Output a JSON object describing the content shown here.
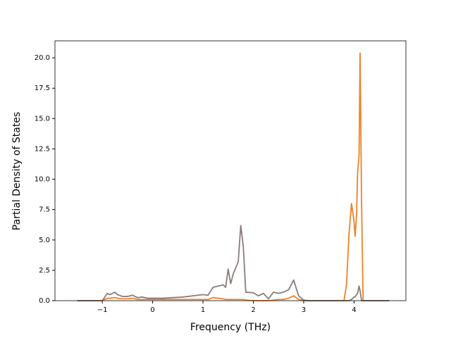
{
  "chart_data": {
    "type": "line",
    "xlabel": "Frequency (THz)",
    "ylabel": "Partial Density of States",
    "x": [
      -1.5,
      -1.0,
      -0.95,
      -0.9,
      -0.85,
      -0.75,
      -0.7,
      -0.6,
      -0.5,
      -0.4,
      -0.3,
      -0.2,
      -0.1,
      0,
      0.2,
      0.4,
      0.6,
      0.8,
      1.0,
      1.1,
      1.2,
      1.3,
      1.4,
      1.45,
      1.5,
      1.55,
      1.6,
      1.7,
      1.75,
      1.8,
      1.85,
      2.0,
      2.1,
      2.2,
      2.3,
      2.4,
      2.5,
      2.6,
      2.7,
      2.8,
      2.9,
      3.0,
      3.1,
      3.8,
      3.85,
      3.9,
      3.95,
      4.0,
      4.02,
      4.05,
      4.07,
      4.1,
      4.12,
      4.15,
      4.18,
      4.7
    ],
    "series": [
      {
        "color": "#ee8127",
        "values": [
          0,
          0,
          0.1,
          0.2,
          0.2,
          0.25,
          0.2,
          0.15,
          0.15,
          0.2,
          0.1,
          0.1,
          0.1,
          0.1,
          0.1,
          0.1,
          0.1,
          0.1,
          0.1,
          0.1,
          0.25,
          0.2,
          0.15,
          0.1,
          0.1,
          0.1,
          0.1,
          0.1,
          0.1,
          0.1,
          0.05,
          0,
          0,
          0,
          0,
          0.05,
          0.1,
          0.1,
          0.2,
          0.4,
          0.1,
          0,
          0,
          0,
          1.3,
          5.5,
          8.0,
          6.5,
          5.3,
          7.0,
          10.5,
          12,
          20.4,
          8,
          0,
          0
        ]
      },
      {
        "color": "#8a7b7b",
        "values": [
          0,
          0,
          0.3,
          0.6,
          0.5,
          0.7,
          0.5,
          0.35,
          0.35,
          0.45,
          0.25,
          0.3,
          0.2,
          0.2,
          0.2,
          0.25,
          0.3,
          0.4,
          0.5,
          0.45,
          1.1,
          1.2,
          1.3,
          1.1,
          2.6,
          1.4,
          2.2,
          3.2,
          6.2,
          4.5,
          0.7,
          0.65,
          0.4,
          0.6,
          0.15,
          0.7,
          0.6,
          0.7,
          0.9,
          1.7,
          0.4,
          0.05,
          0,
          0,
          0,
          0,
          0.1,
          0.3,
          0.3,
          0.5,
          0.6,
          1.2,
          0.8,
          0,
          0,
          0
        ]
      }
    ],
    "xlim": [
      -1.94,
      5.03
    ],
    "ylim": [
      0,
      21.4
    ],
    "xticks": [
      {
        "value": -1,
        "label": "−1"
      },
      0,
      1,
      2,
      3,
      4
    ],
    "yticks": [
      {
        "value": 0,
        "label": "0.0"
      },
      {
        "value": 2.5,
        "label": "2.5"
      },
      {
        "value": 5,
        "label": "5.0"
      },
      {
        "value": 7.5,
        "label": "7.5"
      },
      {
        "value": 10,
        "label": "10.0"
      },
      {
        "value": 12.5,
        "label": "12.5"
      },
      {
        "value": 15,
        "label": "15.0"
      },
      {
        "value": 17.5,
        "label": "17.5"
      },
      {
        "value": 20,
        "label": "20.0"
      }
    ]
  }
}
